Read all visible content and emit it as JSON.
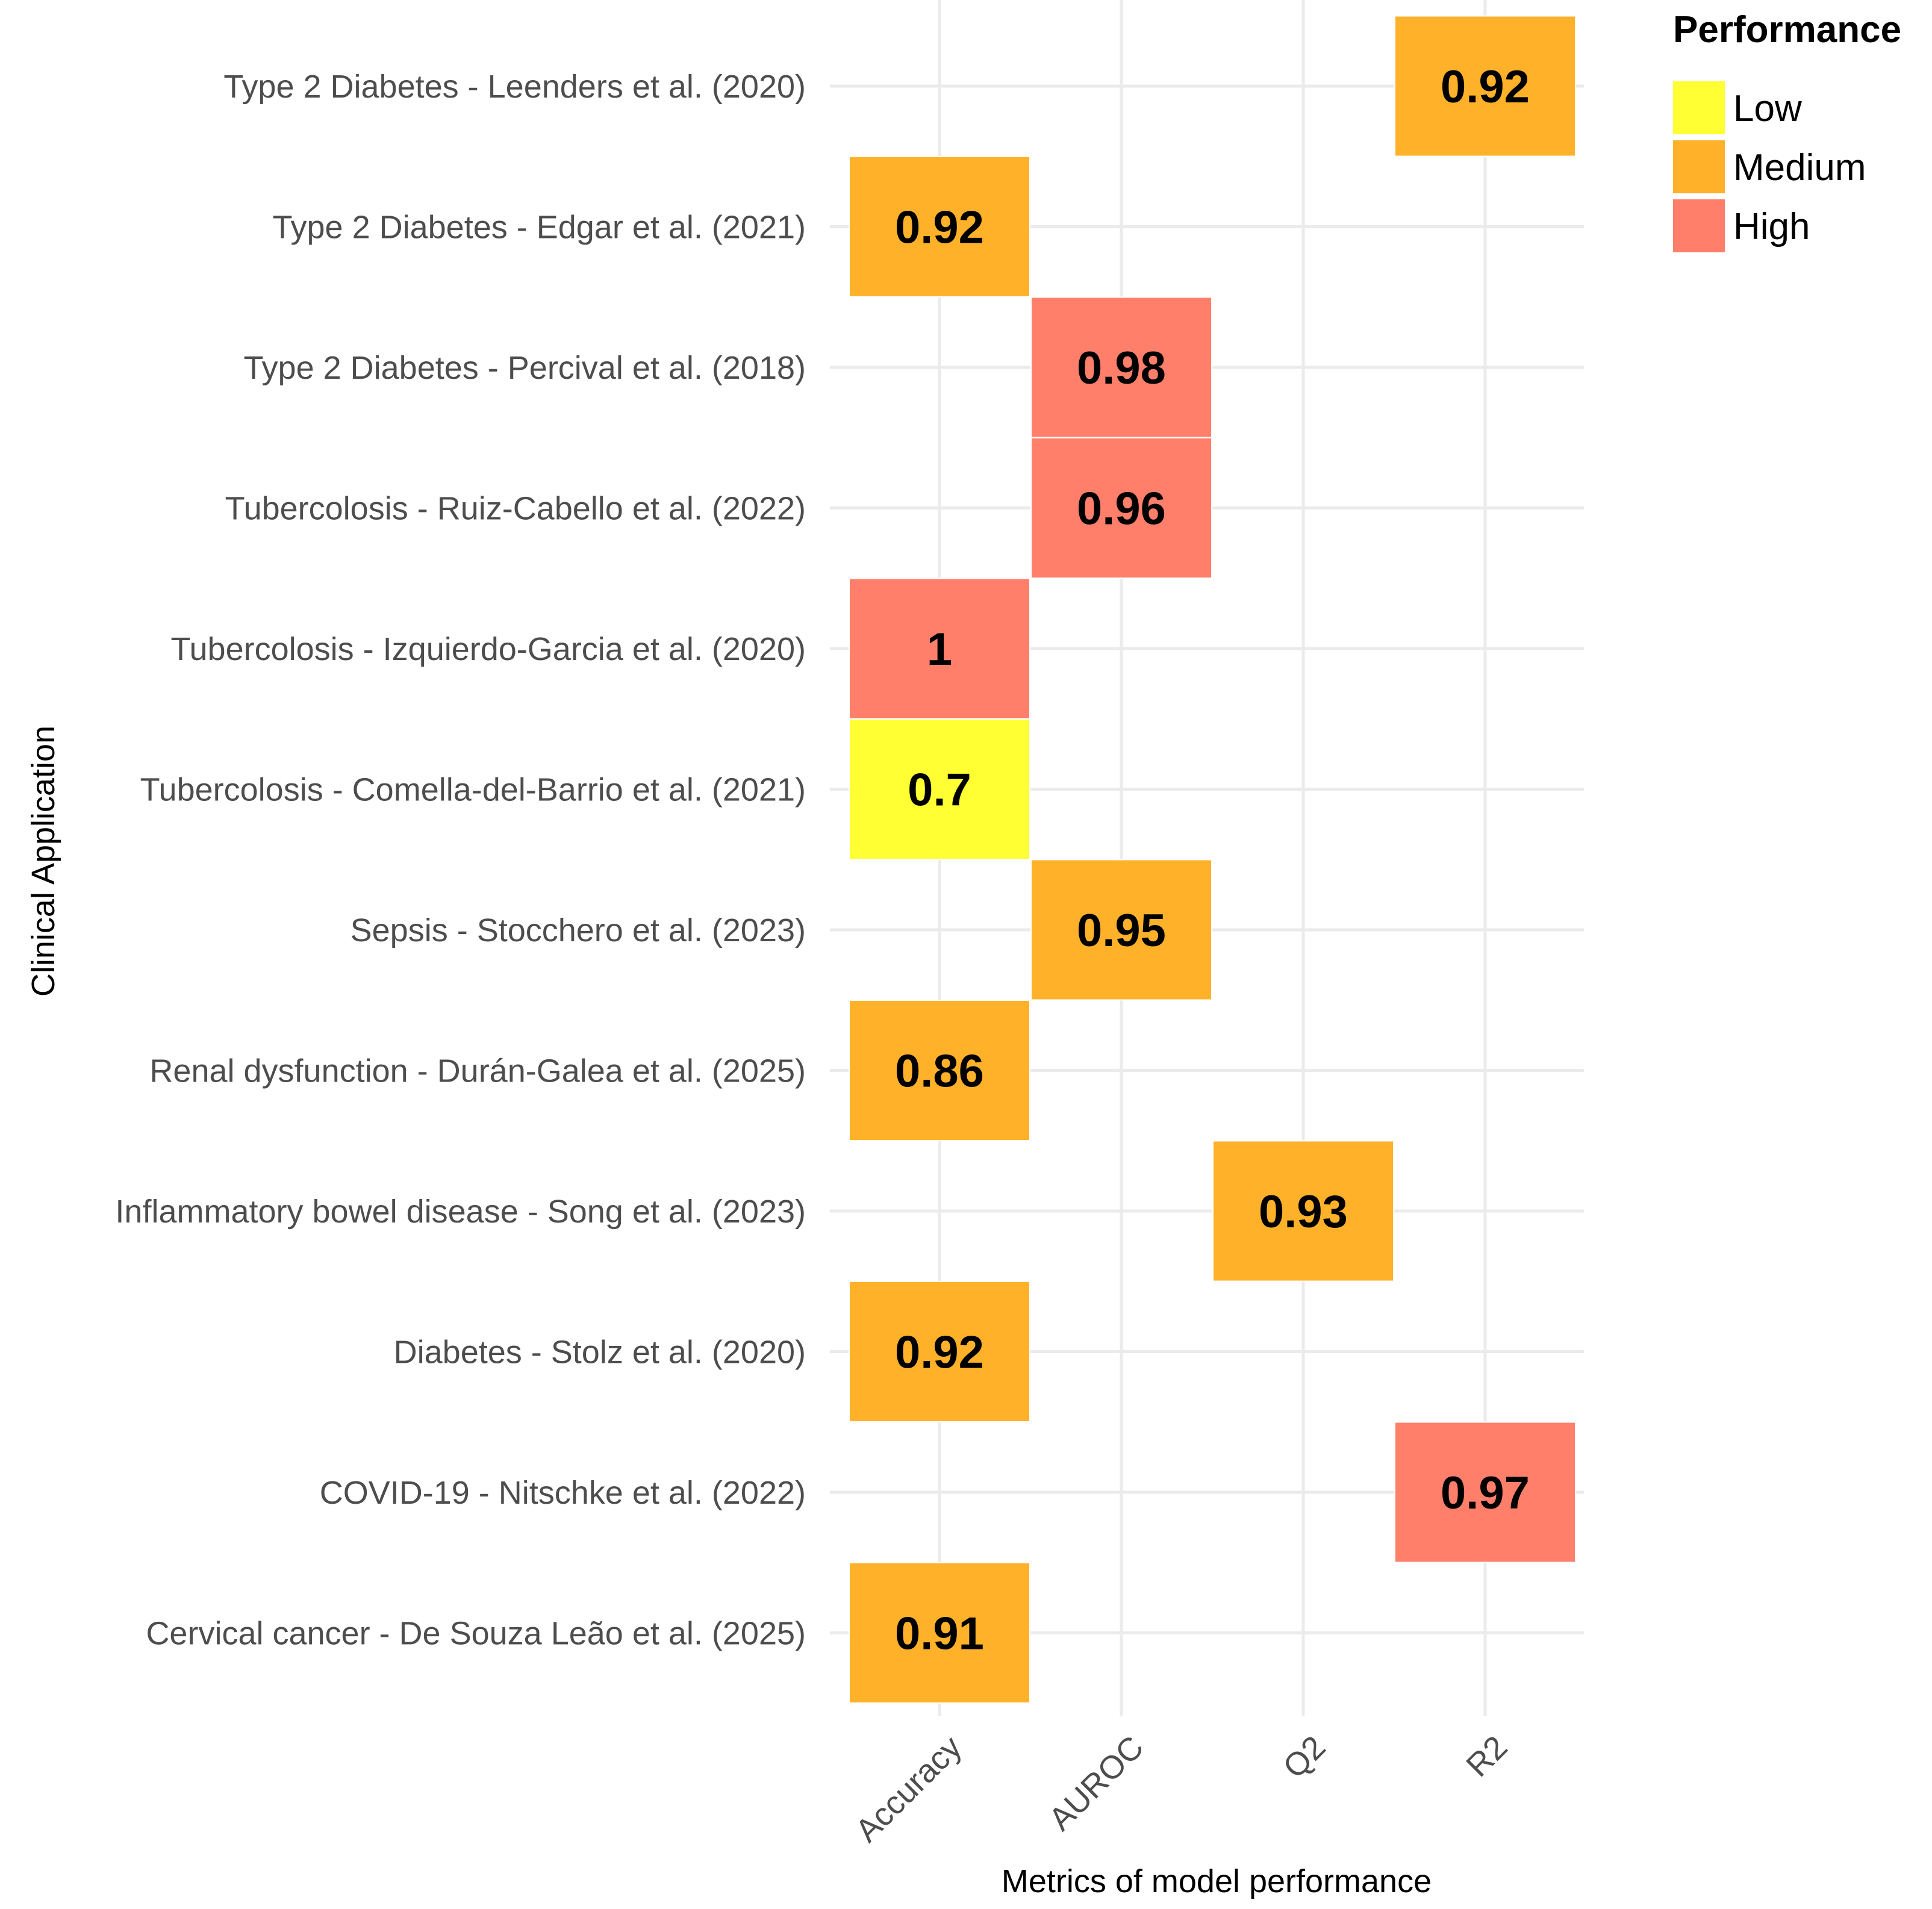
{
  "chart_data": {
    "type": "heatmap",
    "title": "",
    "xlabel": "Metrics of model performance",
    "ylabel": "Clinical Application",
    "x_categories": [
      "Accuracy",
      "AUROC",
      "Q2",
      "R2"
    ],
    "y_categories": [
      "Type 2 Diabetes - Leenders et al. (2020)",
      "Type 2 Diabetes - Edgar et al. (2021)",
      "Type 2 Diabetes - Percival et al. (2018)",
      "Tubercolosis - Ruiz-Cabello et al. (2022)",
      "Tubercolosis - Izquierdo-Garcia et al. (2020)",
      "Tubercolosis - Comella-del-Barrio et al. (2021)",
      "Sepsis - Stocchero et al. (2023)",
      "Renal dysfunction - Durán-Galea et al. (2025)",
      "Inflammatory bowel disease - Song et al. (2023)",
      "Diabetes - Stolz et al. (2020)",
      "COVID-19 - Nitschke et al. (2022)",
      "Cervical cancer - De Souza Leão et al. (2025)"
    ],
    "cells": [
      {
        "row": 0,
        "col": "R2",
        "value": 0.92,
        "label": "0.92",
        "performance": "Medium"
      },
      {
        "row": 1,
        "col": "Accuracy",
        "value": 0.92,
        "label": "0.92",
        "performance": "Medium"
      },
      {
        "row": 2,
        "col": "AUROC",
        "value": 0.98,
        "label": "0.98",
        "performance": "High"
      },
      {
        "row": 3,
        "col": "AUROC",
        "value": 0.96,
        "label": "0.96",
        "performance": "High"
      },
      {
        "row": 4,
        "col": "Accuracy",
        "value": 1,
        "label": "1",
        "performance": "High"
      },
      {
        "row": 5,
        "col": "Accuracy",
        "value": 0.7,
        "label": "0.7",
        "performance": "Low"
      },
      {
        "row": 6,
        "col": "AUROC",
        "value": 0.95,
        "label": "0.95",
        "performance": "Medium"
      },
      {
        "row": 7,
        "col": "Accuracy",
        "value": 0.86,
        "label": "0.86",
        "performance": "Medium"
      },
      {
        "row": 8,
        "col": "Q2",
        "value": 0.93,
        "label": "0.93",
        "performance": "Medium"
      },
      {
        "row": 9,
        "col": "Accuracy",
        "value": 0.92,
        "label": "0.92",
        "performance": "Medium"
      },
      {
        "row": 10,
        "col": "R2",
        "value": 0.97,
        "label": "0.97",
        "performance": "High"
      },
      {
        "row": 11,
        "col": "Accuracy",
        "value": 0.91,
        "label": "0.91",
        "performance": "Medium"
      }
    ],
    "legend": {
      "title": "Performance",
      "position": "top-right",
      "items": [
        {
          "label": "Low",
          "color": "#FFFF33"
        },
        {
          "label": "Medium",
          "color": "#FFB129"
        },
        {
          "label": "High",
          "color": "#FF7F6A"
        }
      ]
    },
    "grid": true
  }
}
